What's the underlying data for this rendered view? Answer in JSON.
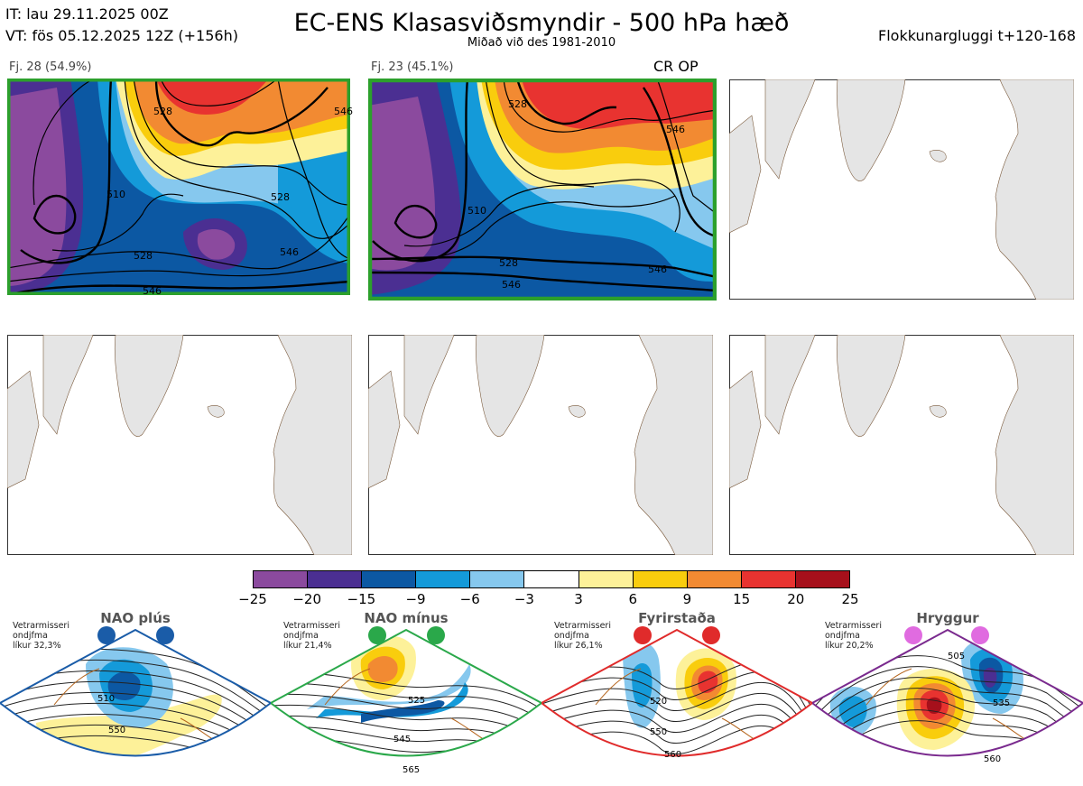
{
  "header": {
    "it": "IT: lau 29.11.2025 00Z",
    "vt": "VT: fös 05.12.2025 12Z  (+156h)",
    "title": "EC-ENS Klasasviðsmyndir - 500 hPa hæð",
    "subtitle": "Miðað við des 1981-2010",
    "window": "Flokkunargluggi t+120-168"
  },
  "clusters": [
    {
      "label": "Fj. 28 (54.9%)",
      "border": "#2ca02c",
      "extra": "",
      "contours": [
        "510",
        "528",
        "528",
        "528",
        "546",
        "546",
        "546"
      ]
    },
    {
      "label": "Fj. 23 (45.1%)",
      "border": "#2ca02c",
      "extra": "CR OP",
      "contours": [
        "528",
        "510",
        "528",
        "546",
        "546",
        "546"
      ]
    }
  ],
  "empty_panels": [
    "panel-3",
    "panel-4",
    "panel-5",
    "panel-6"
  ],
  "colorbar": {
    "colors": [
      "#8b4a9e",
      "#4b2f92",
      "#0c58a3",
      "#149ad9",
      "#86c8ee",
      "#ffffff",
      "#fdf199",
      "#f9cd0d",
      "#f28a32",
      "#e83330",
      "#a6101b"
    ],
    "ticks": [
      "−25",
      "−20",
      "−15",
      "−9",
      "−6",
      "−3",
      "3",
      "6",
      "9",
      "15",
      "20",
      "25"
    ]
  },
  "regimes": [
    {
      "name": "NAO plús",
      "color": "#1a5ca8",
      "text": [
        "Vetrarmisseri",
        "ondjfma",
        "líkur 32,3%"
      ],
      "labels": [
        "510",
        "550"
      ]
    },
    {
      "name": "NAO mínus",
      "color": "#2aa84a",
      "text": [
        "Vetrarmisseri",
        "ondjfma",
        "líkur 21,4%"
      ],
      "labels": [
        "525",
        "545",
        "565"
      ]
    },
    {
      "name": "Fyrirstaða",
      "color": "#e02b2b",
      "text": [
        "Vetrarmisseri",
        "ondjfma",
        "líkur 26,1%"
      ],
      "labels": [
        "520",
        "550",
        "560"
      ]
    },
    {
      "name": "Hryggur",
      "color": "#e06be0",
      "text": [
        "Vetrarmisseri",
        "ondjfma",
        "líkur 20,2%"
      ],
      "labels": [
        "505",
        "535",
        "560"
      ]
    }
  ],
  "chart_data": {
    "type": "heatmap",
    "title": "EC-ENS Klasasviðsmyndir - 500 hPa hæð",
    "subtitle": "Miðað við des 1981-2010",
    "colorbar_ticks": [
      -25,
      -20,
      -15,
      -9,
      -6,
      -3,
      3,
      6,
      9,
      15,
      20,
      25
    ],
    "clusters": [
      {
        "members": 28,
        "probability_pct": 54.9,
        "contour_labels": [
          510,
          528,
          546
        ]
      },
      {
        "members": 23,
        "probability_pct": 45.1,
        "contour_labels": [
          510,
          528,
          546
        ]
      }
    ],
    "regimes": [
      {
        "name": "NAO plús",
        "likelihood_pct": 32.3
      },
      {
        "name": "NAO mínus",
        "likelihood_pct": 21.4
      },
      {
        "name": "Fyrirstaða",
        "likelihood_pct": 26.1
      },
      {
        "name": "Hryggur",
        "likelihood_pct": 20.2
      }
    ]
  }
}
